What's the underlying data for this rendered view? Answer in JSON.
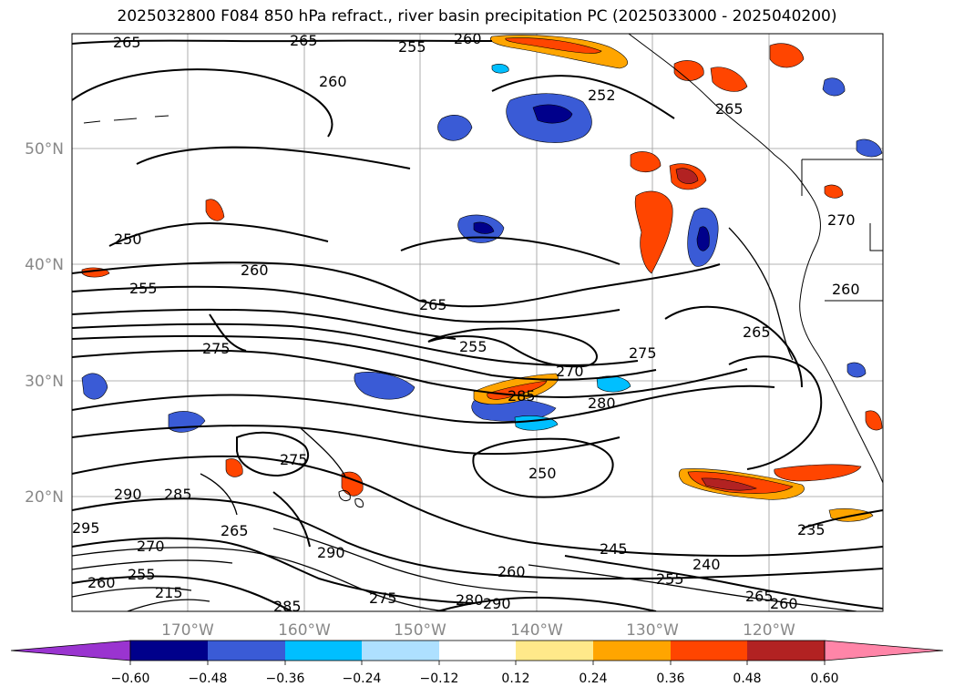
{
  "title": "2025032800 F084 850 hPa refract., river basin precipitation PC (2025033000 - 2025040200)",
  "lat_ticks": [
    "50°N",
    "40°N",
    "30°N",
    "20°N"
  ],
  "lon_ticks": [
    "170°W",
    "160°W",
    "150°W",
    "140°W",
    "130°W",
    "120°W"
  ],
  "colorbar": {
    "colors": [
      "#9a34d0",
      "#00008b",
      "#3a5bd6",
      "#00bfff",
      "#aee0ff",
      "#ffffff",
      "#ffe98a",
      "#ffa500",
      "#ff4500",
      "#b22222",
      "#ff85a8"
    ],
    "tick_labels": [
      "−0.60",
      "−0.48",
      "−0.36",
      "−0.24",
      "−0.12",
      "0.12",
      "0.24",
      "0.36",
      "0.48",
      "0.60"
    ]
  },
  "contour_labels": [
    "265",
    "265",
    "255",
    "260",
    "260",
    "252",
    "265",
    "250",
    "260",
    "255",
    "265",
    "270",
    "260",
    "275",
    "255",
    "270",
    "275",
    "285",
    "280",
    "265",
    "250",
    "290",
    "285",
    "275",
    "295",
    "265",
    "270",
    "290",
    "255",
    "245",
    "240",
    "260",
    "275",
    "285",
    "280",
    "290",
    "235",
    "265",
    "260",
    "215",
    "260",
    "255"
  ]
}
